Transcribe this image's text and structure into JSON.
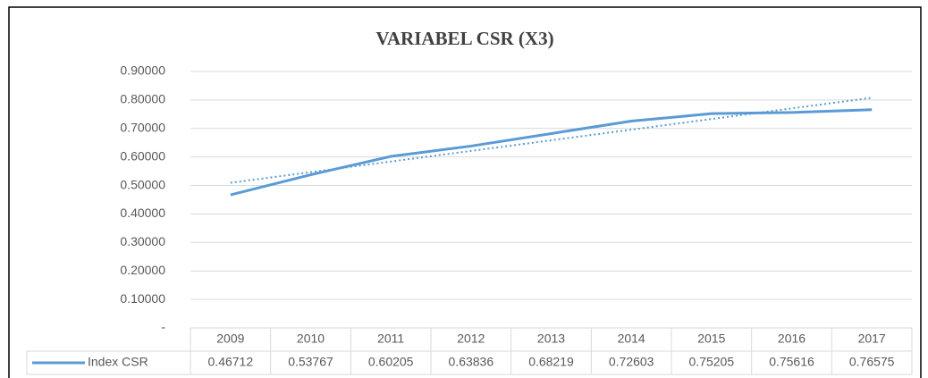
{
  "chart_data": {
    "type": "line",
    "title": "VARIABEL CSR (X3)",
    "categories": [
      "2009",
      "2010",
      "2011",
      "2012",
      "2013",
      "2014",
      "2015",
      "2016",
      "2017"
    ],
    "series": [
      {
        "name": "Index CSR",
        "color": "#5b9bd5",
        "values": [
          0.46712,
          0.53767,
          0.60205,
          0.63836,
          0.68219,
          0.72603,
          0.75205,
          0.75616,
          0.76575
        ]
      }
    ],
    "ylim": [
      0,
      0.9
    ],
    "yticks": [
      {
        "value": 0,
        "label": "-"
      },
      {
        "value": 0.1,
        "label": "0.10000"
      },
      {
        "value": 0.2,
        "label": "0.20000"
      },
      {
        "value": 0.3,
        "label": "0.30000"
      },
      {
        "value": 0.4,
        "label": "0.40000"
      },
      {
        "value": 0.5,
        "label": "0.50000"
      },
      {
        "value": 0.6,
        "label": "0.60000"
      },
      {
        "value": 0.7,
        "label": "0.70000"
      },
      {
        "value": 0.8,
        "label": "0.80000"
      },
      {
        "value": 0.9,
        "label": "0.90000"
      }
    ],
    "grid": true,
    "trendline": "linear",
    "data_table": true
  }
}
